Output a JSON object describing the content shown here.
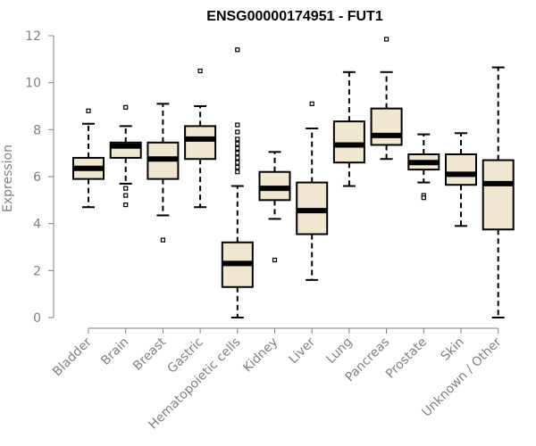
{
  "chart_data": {
    "type": "boxplot",
    "title": "ENSG00000174951 - FUT1",
    "xlabel": "",
    "ylabel": "Expression",
    "ylim": [
      0,
      12
    ],
    "yticks": [
      0,
      2,
      4,
      6,
      8,
      10,
      12
    ],
    "ytick_labels": [
      "0",
      "2",
      "4",
      "6",
      "8",
      "10",
      "12"
    ],
    "grid": false,
    "categories": [
      "Bladder",
      "Brain",
      "Breast",
      "Gastric",
      "Hematopoietic cells",
      "Kidney",
      "Liver",
      "Lung",
      "Pancreas",
      "Prostate",
      "Skin",
      "Unknown / Other"
    ],
    "boxes": [
      {
        "whisker_low": 4.7,
        "q1": 5.9,
        "median": 6.35,
        "q3": 6.8,
        "whisker_high": 8.25,
        "outliers": [
          8.8
        ]
      },
      {
        "whisker_low": 5.7,
        "q1": 6.8,
        "median": 7.3,
        "q3": 7.45,
        "whisker_high": 8.15,
        "outliers": [
          8.95,
          5.5,
          5.2,
          4.8
        ]
      },
      {
        "whisker_low": 4.35,
        "q1": 5.9,
        "median": 6.75,
        "q3": 7.45,
        "whisker_high": 9.1,
        "outliers": [
          3.3
        ]
      },
      {
        "whisker_low": 4.7,
        "q1": 6.75,
        "median": 7.6,
        "q3": 8.15,
        "whisker_high": 9.0,
        "outliers": [
          10.5
        ]
      },
      {
        "whisker_low": 0.0,
        "q1": 1.3,
        "median": 2.3,
        "q3": 3.2,
        "whisker_high": 5.6,
        "outliers": [
          11.4,
          8.2,
          7.9,
          7.6,
          7.4,
          7.2,
          7.0,
          6.8,
          6.6,
          6.4,
          6.2
        ]
      },
      {
        "whisker_low": 4.2,
        "q1": 5.0,
        "median": 5.5,
        "q3": 6.2,
        "whisker_high": 7.05,
        "outliers": [
          2.45
        ]
      },
      {
        "whisker_low": 1.6,
        "q1": 3.55,
        "median": 4.55,
        "q3": 5.75,
        "whisker_high": 8.05,
        "outliers": [
          9.1
        ]
      },
      {
        "whisker_low": 5.6,
        "q1": 6.6,
        "median": 7.35,
        "q3": 8.35,
        "whisker_high": 10.45,
        "outliers": []
      },
      {
        "whisker_low": 6.75,
        "q1": 7.35,
        "median": 7.75,
        "q3": 8.9,
        "whisker_high": 10.45,
        "outliers": [
          11.85
        ]
      },
      {
        "whisker_low": 5.75,
        "q1": 6.3,
        "median": 6.6,
        "q3": 6.95,
        "whisker_high": 7.8,
        "outliers": [
          5.2,
          5.1
        ]
      },
      {
        "whisker_low": 3.9,
        "q1": 5.65,
        "median": 6.1,
        "q3": 6.95,
        "whisker_high": 7.85,
        "outliers": []
      },
      {
        "whisker_low": 0.0,
        "q1": 3.75,
        "median": 5.7,
        "q3": 6.7,
        "whisker_high": 10.65,
        "outliers": []
      }
    ],
    "colors": {
      "box_fill": "#EFE7CF",
      "box_stroke": "#000000",
      "median": "#000000",
      "axis": "#808080",
      "tick_text": "#808080",
      "title": "#000000"
    }
  }
}
